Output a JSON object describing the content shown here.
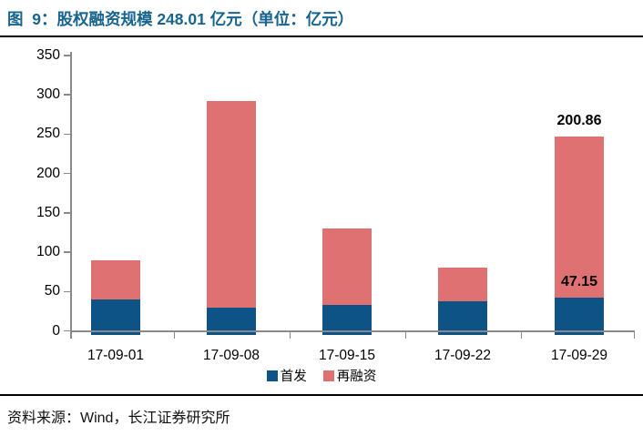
{
  "figure": {
    "title": "图  9：股权融资规模 248.01 亿元（单位：亿元）",
    "source": "资料来源：Wind，长江证券研究所"
  },
  "colors": {
    "title_blue": "#17648F",
    "first_issue_blue": "#0E5385",
    "refinance_red": "#E07173",
    "axis_gray": "#8A8A8A",
    "label_black": "#000000",
    "divider_black": "#000000"
  },
  "chart_data": {
    "type": "bar",
    "stacked": true,
    "unit": "亿元",
    "categories": [
      "17-09-01",
      "17-09-08",
      "17-09-15",
      "17-09-22",
      "17-09-29"
    ],
    "series": [
      {
        "name": "首发",
        "color": "#0E5385",
        "values": [
          44.5,
          34.6,
          37.7,
          42.2,
          47.15
        ]
      },
      {
        "name": "再融资",
        "color": "#E07173",
        "values": [
          49.1,
          258.0,
          95.9,
          42.3,
          200.86
        ]
      }
    ],
    "totals": [
      93.6,
      292.6,
      133.6,
      84.5,
      248.01
    ],
    "ylim": [
      0,
      350
    ],
    "yticks": [
      0,
      50,
      100,
      150,
      200,
      250,
      300,
      350
    ],
    "grid": false,
    "legend_position": "bottom-center",
    "annotations": [
      {
        "text": "200.86",
        "category_index": 4,
        "position": "above-total"
      },
      {
        "text": "47.15",
        "category_index": 4,
        "position": "above-first-segment"
      }
    ]
  }
}
